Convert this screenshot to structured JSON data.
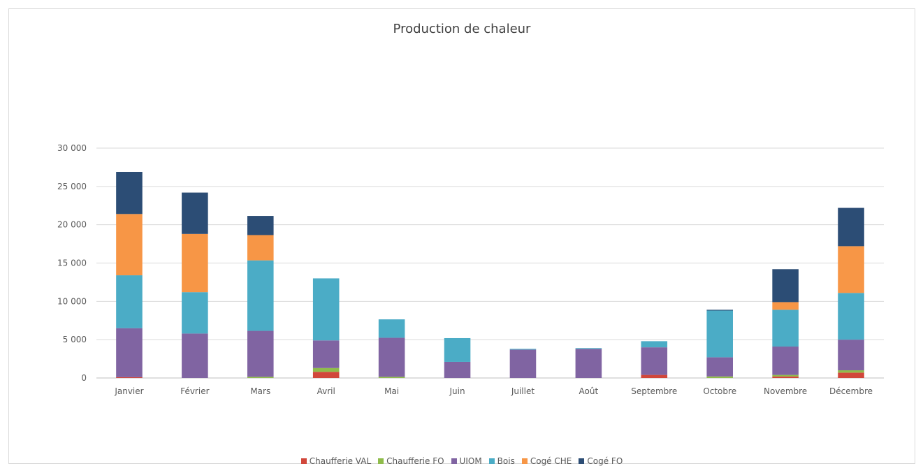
{
  "chart_data": {
    "type": "bar",
    "stacked": true,
    "title": "Production de chaleur",
    "xlabel": "",
    "ylabel": "",
    "ylim": [
      0,
      30000
    ],
    "yticks": [
      0,
      5000,
      10000,
      15000,
      20000,
      25000,
      30000
    ],
    "ytick_labels": [
      "0",
      "5 000",
      "10 000",
      "15 000",
      "20 000",
      "25 000",
      "30 000"
    ],
    "grid": true,
    "legend_position": "bottom",
    "categories": [
      "Janvier",
      "Février",
      "Mars",
      "Avril",
      "Mai",
      "Juin",
      "Juillet",
      "Août",
      "Septembre",
      "Octobre",
      "Novembre",
      "Décembre"
    ],
    "series": [
      {
        "name": "Chaufferie VAL",
        "color": "#D1473B",
        "values": [
          100,
          0,
          0,
          800,
          0,
          0,
          0,
          0,
          400,
          0,
          200,
          700
        ]
      },
      {
        "name": "Chaufferie FO",
        "color": "#8FBC4B",
        "values": [
          0,
          0,
          150,
          500,
          150,
          0,
          0,
          0,
          0,
          200,
          200,
          300
        ]
      },
      {
        "name": "UIOM",
        "color": "#8064A2",
        "values": [
          6400,
          5800,
          6000,
          3600,
          5100,
          2100,
          3700,
          3800,
          3600,
          2500,
          3700,
          4000
        ]
      },
      {
        "name": "Bois",
        "color": "#4BACC6",
        "values": [
          6900,
          5400,
          9200,
          8100,
          2400,
          3100,
          100,
          100,
          800,
          6100,
          4800,
          6100
        ]
      },
      {
        "name": "Cogé CHE",
        "color": "#F79646",
        "values": [
          8000,
          7600,
          3300,
          0,
          0,
          0,
          0,
          0,
          0,
          0,
          1000,
          6100
        ]
      },
      {
        "name": "Cogé FO",
        "color": "#2C4D75",
        "values": [
          5500,
          5400,
          2500,
          0,
          0,
          0,
          0,
          0,
          0,
          100,
          4300,
          5000
        ]
      }
    ]
  }
}
